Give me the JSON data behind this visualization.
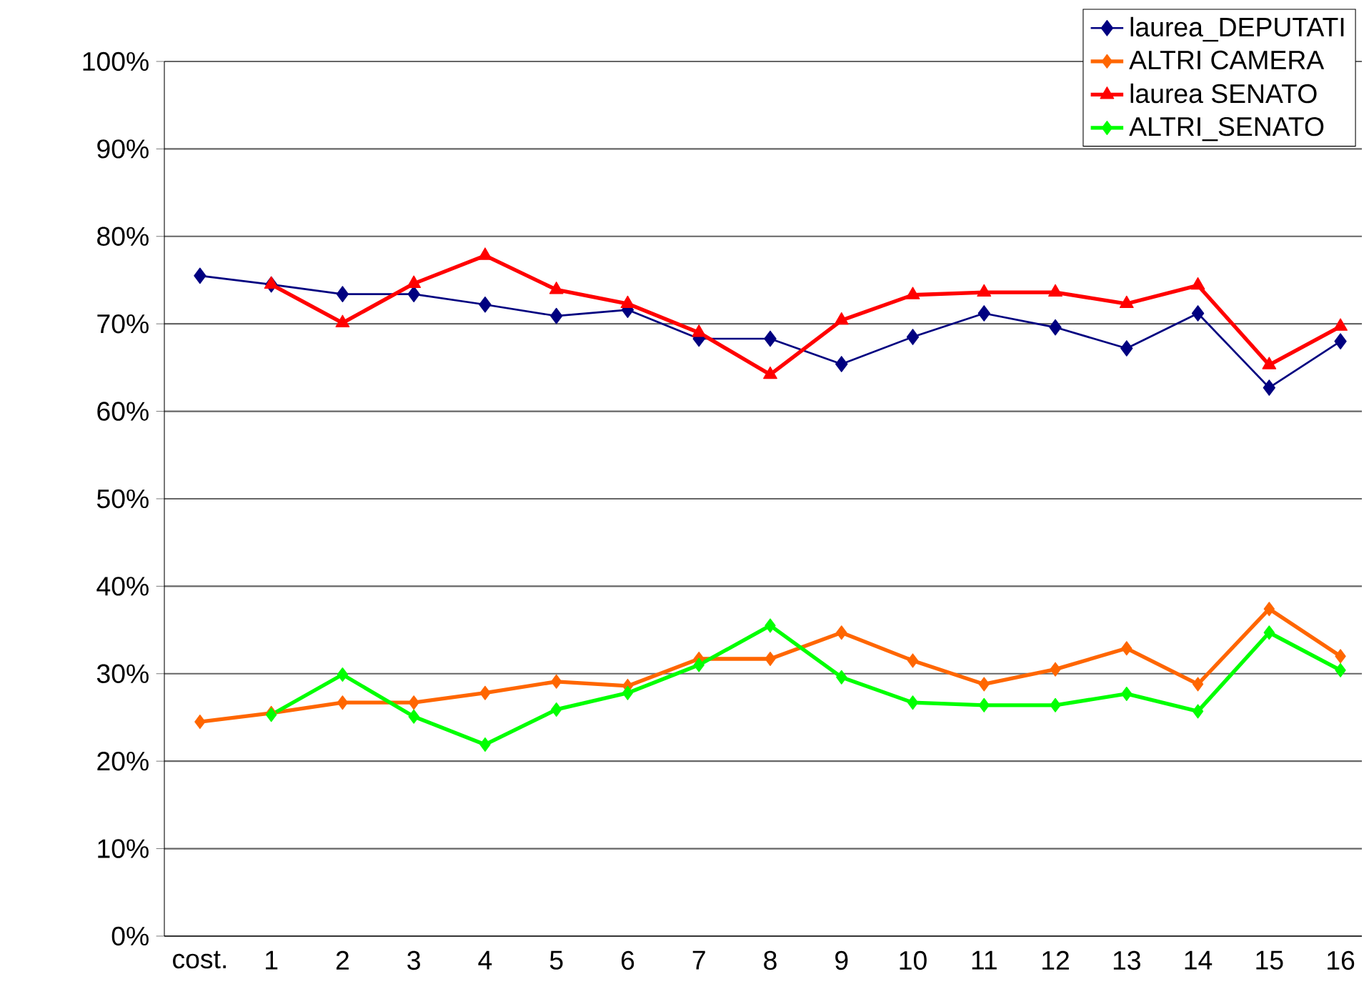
{
  "chart_data": {
    "type": "line",
    "categories": [
      "cost.",
      "1",
      "2",
      "3",
      "4",
      "5",
      "6",
      "7",
      "8",
      "9",
      "10",
      "11",
      "12",
      "13",
      "14",
      "15",
      "16"
    ],
    "ylim": [
      0,
      100
    ],
    "yticks": [
      {
        "value": 0,
        "label": "0%"
      },
      {
        "value": 10,
        "label": "10%"
      },
      {
        "value": 20,
        "label": "20%"
      },
      {
        "value": 30,
        "label": "30%"
      },
      {
        "value": 40,
        "label": "40%"
      },
      {
        "value": 50,
        "label": "50%"
      },
      {
        "value": 60,
        "label": "60%"
      },
      {
        "value": 70,
        "label": "70%"
      },
      {
        "value": 80,
        "label": "80%"
      },
      {
        "value": 90,
        "label": "90%"
      },
      {
        "value": 100,
        "label": "100%"
      }
    ],
    "grid": "y",
    "legend": "top right",
    "series": [
      {
        "name": "laurea_DEPUTATI",
        "color": "#000080",
        "marker": "diamond",
        "values": [
          75.5,
          74.5,
          73.4,
          73.4,
          72.2,
          70.9,
          71.6,
          68.3,
          68.3,
          65.4,
          68.5,
          71.2,
          69.6,
          67.2,
          71.2,
          62.7,
          68.0
        ]
      },
      {
        "name": "ALTRI CAMERA",
        "color": "#ff6600",
        "marker": "diamond",
        "values": [
          24.5,
          25.5,
          26.7,
          26.7,
          27.8,
          29.1,
          28.6,
          31.7,
          31.7,
          34.7,
          31.5,
          28.8,
          30.5,
          32.9,
          28.8,
          37.4,
          32.0
        ]
      },
      {
        "name": "laurea SENATO",
        "color": "#ff0000",
        "marker": "triangle",
        "values": [
          null,
          74.5,
          70.1,
          74.6,
          77.8,
          73.9,
          72.3,
          69.0,
          64.2,
          70.4,
          73.3,
          73.6,
          73.6,
          72.3,
          74.4,
          65.3,
          69.7
        ]
      },
      {
        "name": "ALTRI_SENATO",
        "color": "#00ff00",
        "marker": "diamond",
        "values": [
          null,
          25.3,
          29.9,
          25.1,
          21.9,
          25.9,
          27.8,
          31.0,
          35.5,
          29.6,
          26.7,
          26.4,
          26.4,
          27.7,
          25.7,
          34.7,
          30.4
        ]
      }
    ]
  }
}
